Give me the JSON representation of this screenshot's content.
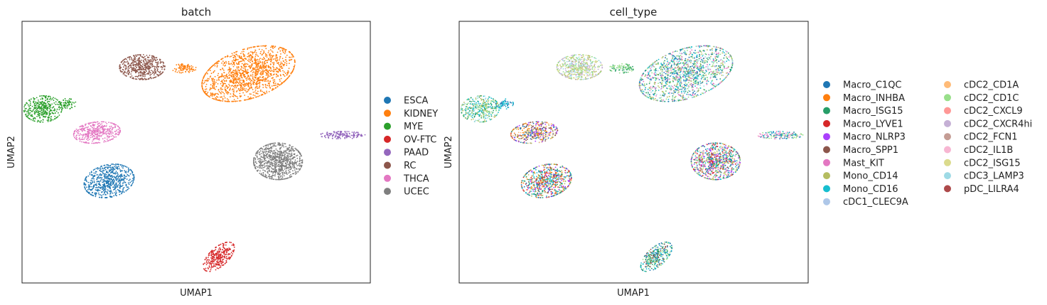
{
  "chart_data": [
    {
      "type": "scatter",
      "title": "batch",
      "xlabel": "UMAP1",
      "ylabel": "UMAP2",
      "xlim": [
        -10,
        10
      ],
      "ylim": [
        -10,
        10
      ],
      "grid": false,
      "ticks": false,
      "legend_position": "right",
      "legend": [
        {
          "label": "ESCA",
          "color": "#1f77b4"
        },
        {
          "label": "KIDNEY",
          "color": "#ff7f0e"
        },
        {
          "label": "MYE",
          "color": "#2ca02c"
        },
        {
          "label": "OV-FTC",
          "color": "#d62728"
        },
        {
          "label": "PAAD",
          "color": "#9467bd"
        },
        {
          "label": "RC",
          "color": "#8c564b"
        },
        {
          "label": "THCA",
          "color": "#e377c2"
        },
        {
          "label": "UCEC",
          "color": "#7f7f7f"
        }
      ],
      "clusters": [
        {
          "label": "ESCA",
          "center": [
            -5.0,
            -2.2
          ],
          "spread": [
            1.5,
            1.2
          ],
          "angle": 30,
          "count": 650
        },
        {
          "label": "KIDNEY",
          "center": [
            3.0,
            6.0
          ],
          "spread": [
            2.9,
            1.8
          ],
          "angle": 30,
          "count": 1400
        },
        {
          "label": "KIDNEY",
          "center": [
            -0.7,
            6.4
          ],
          "spread": [
            0.7,
            0.35
          ],
          "angle": 0,
          "count": 90
        },
        {
          "label": "MYE",
          "center": [
            -8.8,
            3.3
          ],
          "spread": [
            1.1,
            1.0
          ],
          "angle": 15,
          "count": 380
        },
        {
          "label": "MYE",
          "center": [
            -7.4,
            3.7
          ],
          "spread": [
            0.5,
            0.4
          ],
          "angle": 0,
          "count": 60
        },
        {
          "label": "OV-FTC",
          "center": [
            1.3,
            -8.0
          ],
          "spread": [
            1.3,
            0.6
          ],
          "angle": 55,
          "count": 300
        },
        {
          "label": "PAAD",
          "center": [
            8.4,
            1.3
          ],
          "spread": [
            1.3,
            0.28
          ],
          "angle": 0,
          "count": 160
        },
        {
          "label": "RC",
          "center": [
            -3.1,
            6.5
          ],
          "spread": [
            1.3,
            0.95
          ],
          "angle": 0,
          "count": 500
        },
        {
          "label": "THCA",
          "center": [
            -5.7,
            1.5
          ],
          "spread": [
            1.35,
            0.8
          ],
          "angle": 10,
          "count": 420
        },
        {
          "label": "UCEC",
          "center": [
            4.7,
            -0.7
          ],
          "spread": [
            1.4,
            1.4
          ],
          "angle": -40,
          "count": 850
        }
      ]
    },
    {
      "type": "scatter",
      "title": "cell_type",
      "xlabel": "UMAP1",
      "ylabel": "UMAP2",
      "xlim": [
        -10,
        10
      ],
      "ylim": [
        -10,
        10
      ],
      "grid": false,
      "ticks": false,
      "legend_position": "right",
      "legend": [
        {
          "label": "Macro_C1QC",
          "color": "#1f77b4"
        },
        {
          "label": "Macro_INHBA",
          "color": "#ff7f0e"
        },
        {
          "label": "Macro_ISG15",
          "color": "#279e68"
        },
        {
          "label": "Macro_LYVE1",
          "color": "#d62728"
        },
        {
          "label": "Macro_NLRP3",
          "color": "#aa40fc"
        },
        {
          "label": "Macro_SPP1",
          "color": "#8c564b"
        },
        {
          "label": "Mast_KIT",
          "color": "#e377c2"
        },
        {
          "label": "Mono_CD14",
          "color": "#b5bd61"
        },
        {
          "label": "Mono_CD16",
          "color": "#17becf"
        },
        {
          "label": "cDC1_CLEC9A",
          "color": "#aec7e8"
        },
        {
          "label": "cDC2_CD1A",
          "color": "#ffbb78"
        },
        {
          "label": "cDC2_CD1C",
          "color": "#98df8a"
        },
        {
          "label": "cDC2_CXCL9",
          "color": "#ff9896"
        },
        {
          "label": "cDC2_CXCR4hi",
          "color": "#c5b0d5"
        },
        {
          "label": "cDC2_FCN1",
          "color": "#c49c94"
        },
        {
          "label": "cDC2_IL1B",
          "color": "#f7b6d2"
        },
        {
          "label": "cDC2_ISG15",
          "color": "#dbdb8d"
        },
        {
          "label": "cDC3_LAMP3",
          "color": "#9edae5"
        },
        {
          "label": "pDC_LILRA4",
          "color": "#ad494a"
        }
      ],
      "clusters": [
        {
          "center": [
            3.0,
            6.0
          ],
          "spread": [
            2.9,
            1.8
          ],
          "angle": 30,
          "count": 1400,
          "mix": [
            "Mono_CD16",
            "cDC2_CD1C",
            "Macro_ISG15",
            "cDC3_LAMP3",
            "Mast_KIT",
            "Macro_C1QC",
            "Mono_CD14"
          ]
        },
        {
          "center": [
            -0.7,
            6.4
          ],
          "spread": [
            0.7,
            0.35
          ],
          "angle": 0,
          "count": 90,
          "mix": [
            "cDC2_CD1C",
            "Macro_ISG15"
          ]
        },
        {
          "center": [
            -3.1,
            6.5
          ],
          "spread": [
            1.3,
            0.95
          ],
          "angle": 0,
          "count": 500,
          "mix": [
            "cDC2_ISG15",
            "cDC2_CD1C",
            "cDC2_CXCR4hi",
            "Mono_CD14",
            "cDC3_LAMP3"
          ]
        },
        {
          "center": [
            -8.8,
            3.3
          ],
          "spread": [
            1.1,
            1.0
          ],
          "angle": 15,
          "count": 380,
          "mix": [
            "cDC3_LAMP3",
            "Mono_CD16",
            "Macro_ISG15",
            "cDC2_CD1C",
            "Mono_CD14"
          ]
        },
        {
          "center": [
            -7.4,
            3.7
          ],
          "spread": [
            0.5,
            0.4
          ],
          "angle": 0,
          "count": 60,
          "mix": [
            "Macro_C1QC",
            "Mono_CD16"
          ]
        },
        {
          "center": [
            -5.7,
            1.5
          ],
          "spread": [
            1.35,
            0.8
          ],
          "angle": 10,
          "count": 420,
          "mix": [
            "Macro_INHBA",
            "Mono_CD14",
            "Macro_NLRP3",
            "Macro_C1QC",
            "Macro_SPP1",
            "cDC2_CD1A"
          ]
        },
        {
          "center": [
            8.4,
            1.3
          ],
          "spread": [
            1.3,
            0.28
          ],
          "angle": 0,
          "count": 160,
          "mix": [
            "cDC2_CD1C",
            "Macro_C1QC",
            "Mast_KIT",
            "Mono_CD16",
            "cDC2_IL1B"
          ]
        },
        {
          "center": [
            4.7,
            -0.7
          ],
          "spread": [
            1.4,
            1.4
          ],
          "angle": -40,
          "count": 850,
          "mix": [
            "Mono_CD14",
            "cDC2_ISG15",
            "Macro_C1QC",
            "Mono_CD16",
            "Mast_KIT",
            "Macro_LYVE1",
            "Macro_NLRP3",
            "Macro_ISG15"
          ]
        },
        {
          "center": [
            -5.0,
            -2.2
          ],
          "spread": [
            1.5,
            1.2
          ],
          "angle": 30,
          "count": 650,
          "mix": [
            "Macro_LYVE1",
            "Macro_NLRP3",
            "Mono_CD14",
            "Macro_C1QC",
            "Macro_ISG15",
            "Macro_INHBA",
            "Mono_CD16"
          ]
        },
        {
          "center": [
            1.3,
            -8.0
          ],
          "spread": [
            1.3,
            0.6
          ],
          "angle": 55,
          "count": 300,
          "mix": [
            "Macro_C1QC",
            "Macro_SPP1",
            "Mono_CD16",
            "Macro_ISG15",
            "cDC2_CD1C"
          ]
        }
      ]
    }
  ]
}
